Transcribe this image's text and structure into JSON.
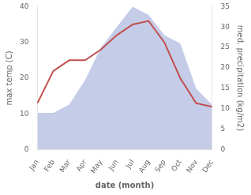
{
  "chart_data": {
    "type": "line",
    "xlabel": "date (month)",
    "ylabel": "max temp (C)",
    "y2label": "med. precipitation (kg/m2)",
    "categories": [
      "Jan",
      "Feb",
      "Mar",
      "Apr",
      "May",
      "Jun",
      "Jul",
      "Aug",
      "Sep",
      "Oct",
      "Nov",
      "Dec"
    ],
    "series": [
      {
        "type": "line",
        "color": "#c0504d",
        "values": [
          13,
          22,
          25,
          25,
          28,
          32,
          35,
          36,
          30,
          20,
          13,
          12
        ]
      },
      {
        "type": "area",
        "color": "#c5cce8",
        "axis": "y2",
        "values": [
          9,
          9,
          11,
          17,
          25,
          30,
          35,
          33,
          28,
          26,
          15,
          11
        ]
      }
    ],
    "ylim": [
      0,
      40
    ],
    "yticks": [
      0,
      10,
      20,
      30,
      40
    ],
    "y2lim": [
      0,
      35
    ],
    "y2ticks": [
      0,
      5,
      10,
      15,
      20,
      25,
      30,
      35
    ],
    "grid": false
  }
}
